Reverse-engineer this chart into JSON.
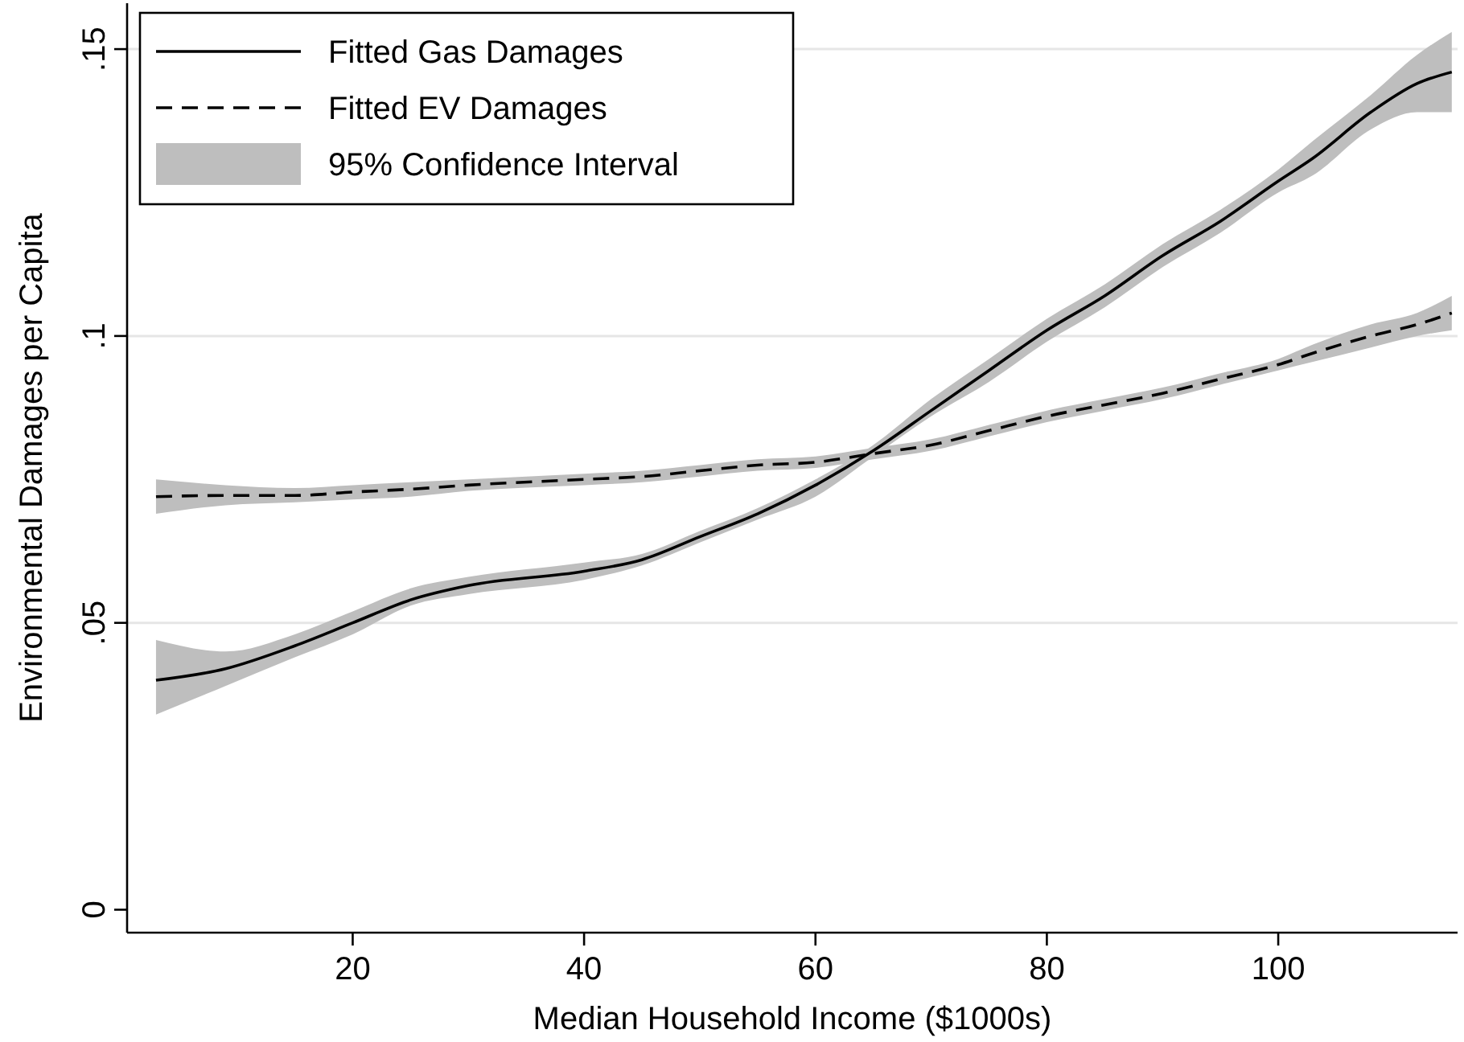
{
  "chart_data": {
    "type": "line",
    "xlabel": "Median Household Income ($1000s)",
    "ylabel": "Environmental Damages per Capita",
    "x": [
      3,
      9,
      15,
      20,
      25,
      30,
      40,
      45,
      50,
      55,
      60,
      65,
      70,
      75,
      80,
      85,
      90,
      95,
      100,
      103,
      108,
      112,
      115
    ],
    "series": [
      {
        "name": "Fitted Gas Damages",
        "color": "#000000",
        "line_style": "solid",
        "values": [
          0.04,
          0.042,
          0.046,
          0.05,
          0.054,
          0.0565,
          0.059,
          0.061,
          0.065,
          0.069,
          0.074,
          0.08,
          0.087,
          0.094,
          0.101,
          0.107,
          0.114,
          0.12,
          0.127,
          0.131,
          0.139,
          0.144,
          0.146
        ],
        "lower": [
          0.034,
          0.039,
          0.044,
          0.048,
          0.053,
          0.055,
          0.0575,
          0.06,
          0.064,
          0.068,
          0.072,
          0.079,
          0.086,
          0.092,
          0.099,
          0.105,
          0.112,
          0.118,
          0.125,
          0.128,
          0.136,
          0.139,
          0.139
        ],
        "upper": [
          0.047,
          0.045,
          0.048,
          0.052,
          0.056,
          0.058,
          0.0605,
          0.062,
          0.066,
          0.07,
          0.075,
          0.081,
          0.089,
          0.096,
          0.103,
          0.109,
          0.116,
          0.122,
          0.129,
          0.134,
          0.142,
          0.149,
          0.153
        ]
      },
      {
        "name": "Fitted EV Damages",
        "color": "#000000",
        "line_style": "dashed",
        "values": [
          0.072,
          0.0722,
          0.0722,
          0.0728,
          0.0733,
          0.074,
          0.075,
          0.0755,
          0.0765,
          0.0775,
          0.078,
          0.0795,
          0.081,
          0.0835,
          0.086,
          0.088,
          0.09,
          0.0925,
          0.095,
          0.097,
          0.1,
          0.102,
          0.104
        ],
        "lower": [
          0.069,
          0.0705,
          0.071,
          0.0715,
          0.072,
          0.073,
          0.074,
          0.0745,
          0.0755,
          0.0765,
          0.077,
          0.0785,
          0.08,
          0.0825,
          0.085,
          0.087,
          0.089,
          0.0915,
          0.094,
          0.0955,
          0.098,
          0.1,
          0.101
        ],
        "upper": [
          0.075,
          0.074,
          0.0735,
          0.074,
          0.0745,
          0.075,
          0.076,
          0.0765,
          0.0775,
          0.0785,
          0.079,
          0.0805,
          0.082,
          0.0845,
          0.087,
          0.089,
          0.091,
          0.0935,
          0.096,
          0.0985,
          0.102,
          0.104,
          0.107
        ]
      }
    ],
    "annotations": [
      "95% Confidence Interval"
    ],
    "xlim": [
      0.5,
      115.5
    ],
    "xticks": [
      20,
      40,
      60,
      80,
      100
    ],
    "ylim": [
      -0.004,
      0.158
    ],
    "yticks": [
      {
        "value": 0,
        "label": "0"
      },
      {
        "value": 0.05,
        "label": ".05"
      },
      {
        "value": 0.1,
        "label": ".1"
      },
      {
        "value": 0.15,
        "label": ".15"
      }
    ],
    "grid": "y",
    "legend": "top left"
  }
}
